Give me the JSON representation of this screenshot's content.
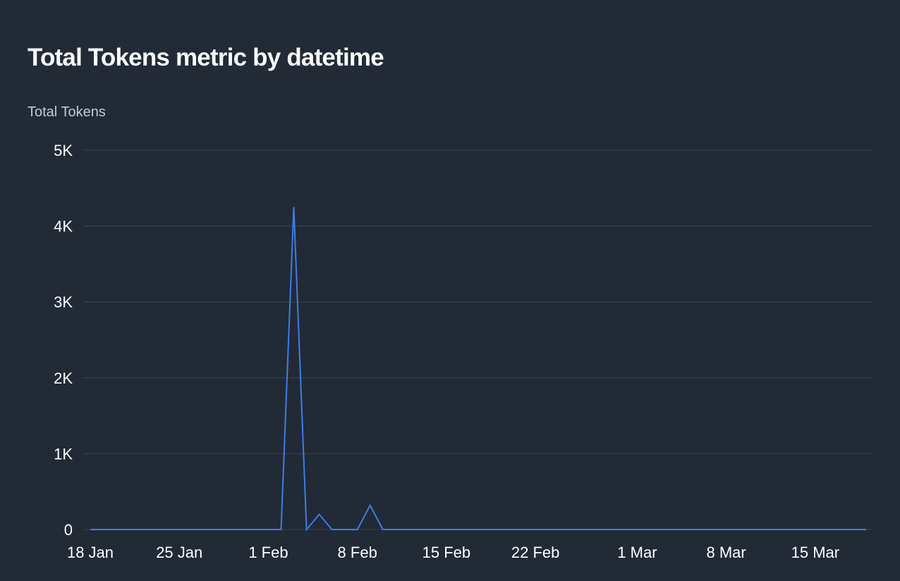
{
  "chart_data": {
    "type": "line",
    "title": "Total Tokens metric by datetime",
    "ylabel": "Total Tokens",
    "xlabel": "",
    "ylim": [
      0,
      5000
    ],
    "y_ticks": [
      {
        "value": 0,
        "label": "0"
      },
      {
        "value": 1000,
        "label": "1K"
      },
      {
        "value": 2000,
        "label": "2K"
      },
      {
        "value": 3000,
        "label": "3K"
      },
      {
        "value": 4000,
        "label": "4K"
      },
      {
        "value": 5000,
        "label": "5K"
      }
    ],
    "x_ticks": [
      {
        "date": "2024-01-18",
        "label": "18 Jan"
      },
      {
        "date": "2024-01-25",
        "label": "25 Jan"
      },
      {
        "date": "2024-02-01",
        "label": "1 Feb"
      },
      {
        "date": "2024-02-08",
        "label": "8 Feb"
      },
      {
        "date": "2024-02-15",
        "label": "15 Feb"
      },
      {
        "date": "2024-02-22",
        "label": "22 Feb"
      },
      {
        "date": "2024-03-01",
        "label": "1 Mar"
      },
      {
        "date": "2024-03-08",
        "label": "8 Mar"
      },
      {
        "date": "2024-03-15",
        "label": "15 Mar"
      }
    ],
    "xlim": [
      "2024-01-18",
      "2024-03-19"
    ],
    "grid": true,
    "line_color": "#3d7ee6",
    "series": [
      {
        "x": [
          "2024-01-18",
          "2024-02-02",
          "2024-02-03",
          "2024-02-04",
          "2024-02-05",
          "2024-02-06",
          "2024-02-07",
          "2024-02-08",
          "2024-02-09",
          "2024-02-10",
          "2024-03-19"
        ],
        "values": [
          0,
          0,
          4250,
          0,
          200,
          0,
          0,
          0,
          320,
          0,
          0
        ]
      }
    ]
  }
}
